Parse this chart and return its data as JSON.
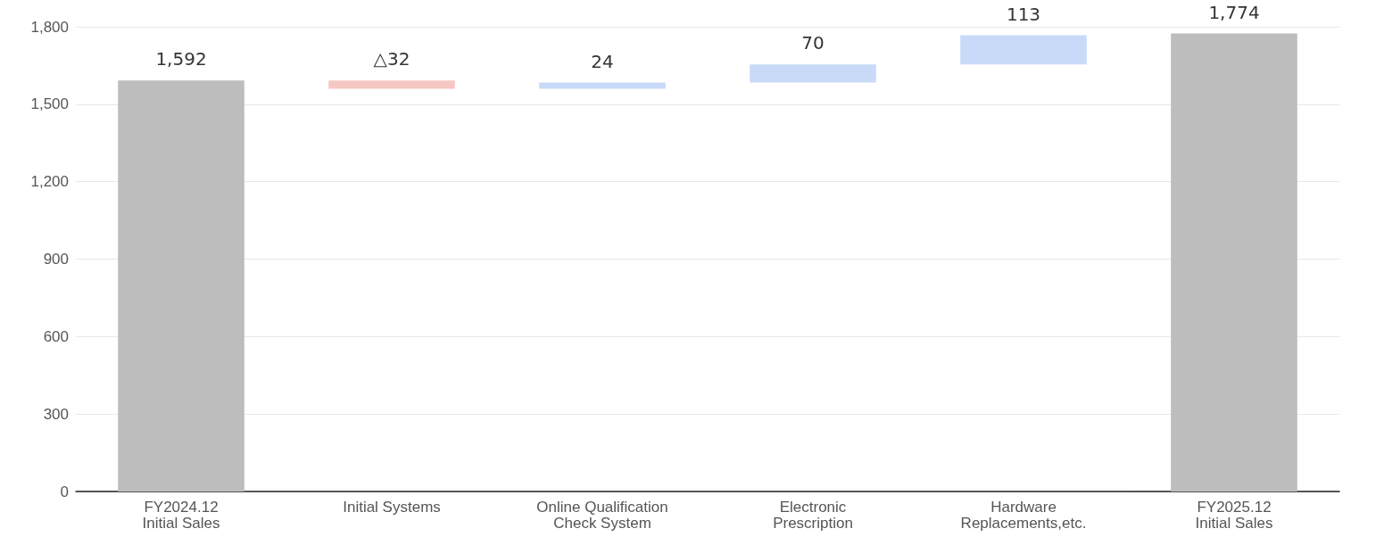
{
  "chart_data": {
    "type": "bar",
    "categories": [
      "FY2024.12\nInitial Sales",
      "Initial Systems",
      "Online Qualification\nCheck System",
      "Electronic\nPrescription",
      "Hardware\nReplacements,etc.",
      "FY2025.12\nInitial Sales"
    ],
    "values": [
      1592,
      -32,
      24,
      70,
      113,
      1774
    ],
    "base": [
      0,
      1592,
      1560,
      1584,
      1654,
      0
    ],
    "colors": [
      "#bdbdbd",
      "#f4c7c3",
      "#c9daf8",
      "#c9daf8",
      "#c9daf8",
      "#bdbdbd"
    ],
    "value_labels": [
      "1,592",
      "△32",
      "24",
      "70",
      "113",
      "1,774"
    ],
    "ylim": [
      0,
      1800
    ],
    "yticks": [
      0,
      300,
      600,
      900,
      {
        "value": 1200,
        "label": "1,200"
      },
      {
        "value": 1500,
        "label": "1,500"
      },
      {
        "value": 1800,
        "label": "1,800"
      }
    ],
    "grid": "y"
  }
}
